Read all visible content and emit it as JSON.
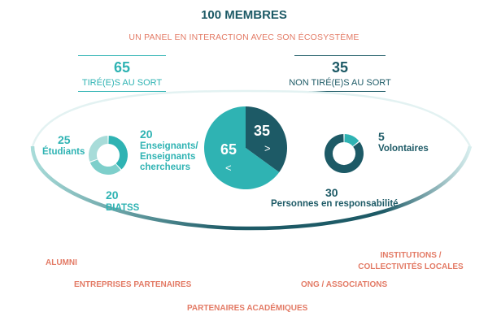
{
  "header": {
    "title": "100 MEMBRES",
    "subtitle": "UN PANEL EN INTERACTION AVEC SON ÉCOSYSTÈME"
  },
  "left_block": {
    "value": "65",
    "label": "TIRÉ(E)S AU SORT"
  },
  "right_block": {
    "value": "35",
    "label": "NON TIRÉ(E)S AU SORT"
  },
  "colors": {
    "teal": "#2fb3b3",
    "dark_teal": "#1d5a66",
    "coral": "#e37b66",
    "light_teal": "#a8dcd9"
  },
  "chart_data": [
    {
      "type": "pie",
      "slices": [
        {
          "label": "65",
          "value": 65
        },
        {
          "label": "35",
          "value": 35
        }
      ],
      "markers": [
        ">",
        "<"
      ]
    },
    {
      "type": "pie",
      "style": "donut",
      "slices": [
        {
          "value": "25",
          "label": "Étudiants"
        },
        {
          "value": "20",
          "label": "Enseignants/ Enseignants chercheurs"
        },
        {
          "value": "20",
          "label": "BIATSS"
        }
      ]
    },
    {
      "type": "pie",
      "style": "donut",
      "slices": [
        {
          "value": "5",
          "label": "Volontaires"
        },
        {
          "value": "30",
          "label": "Personnes en responsabilité"
        }
      ]
    }
  ],
  "ecosystem": [
    "ALUMNI",
    "ENTREPRISES PARTENAIRES",
    "PARTENAIRES ACADÉMIQUES",
    "ONG / ASSOCIATIONS",
    "INSTITUTIONS / COLLECTIVITÉS LOCALES"
  ]
}
